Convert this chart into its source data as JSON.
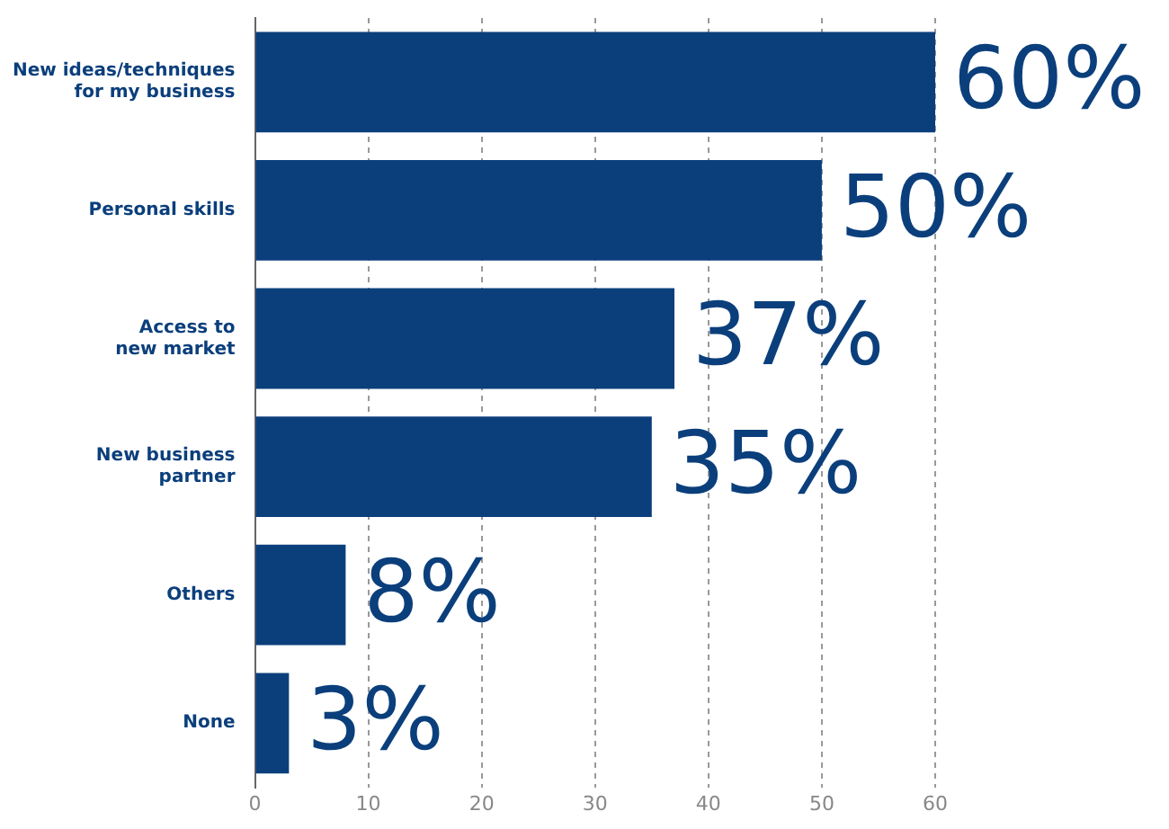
{
  "chart_data": {
    "type": "bar",
    "orientation": "horizontal",
    "categories": [
      "New ideas/techniques\nfor my business",
      "Personal skills",
      "Access to\nnew market",
      "New business\npartner",
      "Others",
      "None"
    ],
    "values": [
      60,
      50,
      37,
      35,
      8,
      3
    ],
    "value_labels": [
      "60%",
      "50%",
      "37%",
      "35%",
      "8%",
      "3%"
    ],
    "color": "#0b3f7c",
    "xlim": [
      0,
      60
    ],
    "xticks": [
      0,
      10,
      20,
      30,
      40,
      50,
      60
    ],
    "grid": "x",
    "legend": false
  }
}
